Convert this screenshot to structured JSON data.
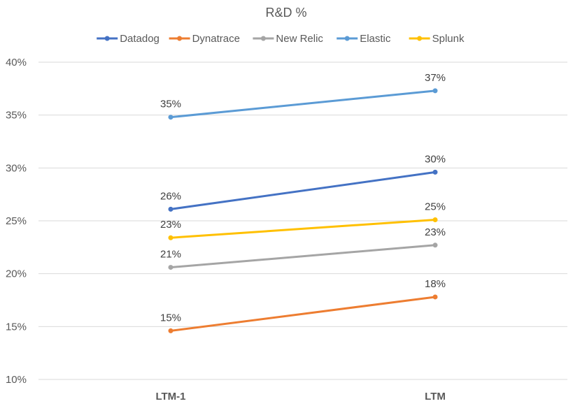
{
  "chart_data": {
    "type": "line",
    "title": "R&D %",
    "xlabel": "",
    "ylabel": "",
    "categories": [
      "LTM-1",
      "LTM"
    ],
    "ylim": [
      0.1,
      0.4
    ],
    "yticks": [
      "10%",
      "15%",
      "20%",
      "25%",
      "30%",
      "35%",
      "40%"
    ],
    "ytick_values": [
      0.1,
      0.15,
      0.2,
      0.25,
      0.3,
      0.35,
      0.4
    ],
    "grid": true,
    "legend": "top",
    "series": [
      {
        "name": "Datadog",
        "color": "#4472C4",
        "values": [
          0.261,
          0.296
        ],
        "labels": [
          "26%",
          "30%"
        ]
      },
      {
        "name": "Dynatrace",
        "color": "#ED7D31",
        "values": [
          0.146,
          0.178
        ],
        "labels": [
          "15%",
          "18%"
        ]
      },
      {
        "name": "New Relic",
        "color": "#A5A5A5",
        "values": [
          0.206,
          0.227
        ],
        "labels": [
          "21%",
          "23%"
        ]
      },
      {
        "name": "Elastic",
        "color": "#5B9BD5",
        "values": [
          0.348,
          0.373
        ],
        "labels": [
          "35%",
          "37%"
        ]
      },
      {
        "name": "Splunk",
        "color": "#FFC000",
        "values": [
          0.234,
          0.251
        ],
        "labels": [
          "23%",
          "25%"
        ]
      }
    ]
  }
}
